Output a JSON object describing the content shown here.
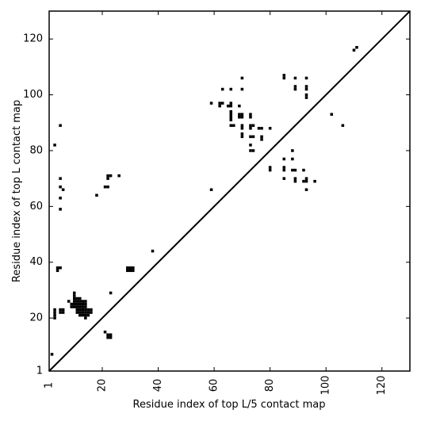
{
  "chart_data": {
    "type": "scatter",
    "title": "",
    "xlabel": "Residue index of top L/5 contact map",
    "ylabel": "Residue index of top L contact map",
    "xlim": [
      1,
      130
    ],
    "ylim": [
      1,
      130
    ],
    "xticks": [
      1,
      20,
      40,
      60,
      80,
      100,
      120
    ],
    "yticks": [
      1,
      20,
      40,
      60,
      80,
      100,
      120
    ],
    "xtick_labels": [
      "1",
      "20",
      "40",
      "60",
      "80",
      "100",
      "120"
    ],
    "ytick_labels": [
      "1",
      "20",
      "40",
      "60",
      "80",
      "100",
      "120"
    ],
    "diagonal_line": true,
    "grid": false,
    "legend": "none",
    "marker_color": "#000000",
    "series": [
      {
        "points_upper": [
          [
            3,
            82
          ],
          [
            5,
            89
          ],
          [
            5,
            70
          ],
          [
            5,
            67
          ],
          [
            6,
            66
          ],
          [
            5,
            63
          ],
          [
            5,
            59
          ],
          [
            18,
            64
          ],
          [
            21,
            67
          ],
          [
            22,
            67
          ],
          [
            22,
            70
          ],
          [
            22,
            71
          ],
          [
            23,
            71
          ],
          [
            26,
            71
          ],
          [
            59,
            66
          ],
          [
            59,
            97
          ],
          [
            62,
            96
          ],
          [
            62,
            97
          ],
          [
            63,
            97
          ],
          [
            63,
            102
          ],
          [
            65,
            96
          ],
          [
            66,
            96
          ],
          [
            66,
            97
          ],
          [
            66,
            102
          ],
          [
            66,
            94
          ],
          [
            66,
            93
          ],
          [
            66,
            92
          ],
          [
            66,
            91
          ],
          [
            66,
            89
          ],
          [
            67,
            89
          ],
          [
            69,
            96
          ],
          [
            69,
            93
          ],
          [
            69,
            92
          ],
          [
            70,
            92
          ],
          [
            70,
            93
          ],
          [
            70,
            89
          ],
          [
            70,
            88
          ],
          [
            70,
            86
          ],
          [
            70,
            85
          ],
          [
            70,
            102
          ],
          [
            70,
            106
          ],
          [
            73,
            93
          ],
          [
            73,
            92
          ],
          [
            73,
            89
          ],
          [
            73,
            88
          ],
          [
            74,
            89
          ],
          [
            73,
            85
          ],
          [
            74,
            85
          ],
          [
            73,
            82
          ],
          [
            73,
            80
          ],
          [
            74,
            80
          ],
          [
            76,
            88
          ],
          [
            77,
            88
          ],
          [
            77,
            85
          ],
          [
            77,
            84
          ],
          [
            80,
            88
          ],
          [
            80,
            74
          ],
          [
            80,
            73
          ],
          [
            85,
            107
          ],
          [
            85,
            106
          ],
          [
            85,
            77
          ],
          [
            85,
            74
          ],
          [
            85,
            73
          ],
          [
            85,
            70
          ],
          [
            88,
            80
          ],
          [
            88,
            77
          ],
          [
            88,
            73
          ],
          [
            89,
            73
          ],
          [
            89,
            106
          ],
          [
            89,
            103
          ],
          [
            89,
            102
          ],
          [
            89,
            70
          ],
          [
            89,
            69
          ],
          [
            92,
            73
          ],
          [
            92,
            69
          ],
          [
            93,
            106
          ],
          [
            93,
            103
          ],
          [
            93,
            102
          ],
          [
            93,
            100
          ],
          [
            93,
            99
          ],
          [
            93,
            70
          ],
          [
            93,
            69
          ],
          [
            93,
            66
          ],
          [
            96,
            69
          ],
          [
            102,
            93
          ],
          [
            106,
            89
          ],
          [
            110,
            116
          ],
          [
            111,
            117
          ]
        ],
        "points_lower": [
          [
            2,
            7
          ],
          [
            3,
            20
          ],
          [
            3,
            21
          ],
          [
            3,
            22
          ],
          [
            3,
            23
          ],
          [
            5,
            22
          ],
          [
            5,
            23
          ],
          [
            6,
            22
          ],
          [
            6,
            23
          ],
          [
            8,
            26
          ],
          [
            9,
            24
          ],
          [
            9,
            25
          ],
          [
            10,
            24
          ],
          [
            10,
            25
          ],
          [
            10,
            26
          ],
          [
            10,
            27
          ],
          [
            10,
            28
          ],
          [
            10,
            29
          ],
          [
            11,
            22
          ],
          [
            11,
            23
          ],
          [
            11,
            24
          ],
          [
            11,
            25
          ],
          [
            11,
            26
          ],
          [
            11,
            27
          ],
          [
            12,
            21
          ],
          [
            12,
            22
          ],
          [
            12,
            23
          ],
          [
            12,
            24
          ],
          [
            12,
            25
          ],
          [
            12,
            26
          ],
          [
            12,
            27
          ],
          [
            13,
            21
          ],
          [
            13,
            22
          ],
          [
            13,
            23
          ],
          [
            13,
            24
          ],
          [
            13,
            25
          ],
          [
            13,
            26
          ],
          [
            14,
            20
          ],
          [
            14,
            21
          ],
          [
            14,
            22
          ],
          [
            14,
            23
          ],
          [
            14,
            24
          ],
          [
            14,
            25
          ],
          [
            14,
            26
          ],
          [
            15,
            21
          ],
          [
            15,
            22
          ],
          [
            15,
            23
          ],
          [
            16,
            22
          ],
          [
            16,
            23
          ],
          [
            4,
            37
          ],
          [
            4,
            38
          ],
          [
            5,
            38
          ],
          [
            21,
            15
          ],
          [
            22,
            13
          ],
          [
            22,
            14
          ],
          [
            23,
            13
          ],
          [
            23,
            14
          ],
          [
            23,
            29
          ],
          [
            29,
            37
          ],
          [
            29,
            38
          ],
          [
            30,
            37
          ],
          [
            30,
            38
          ],
          [
            31,
            37
          ],
          [
            31,
            38
          ],
          [
            38,
            44
          ]
        ]
      }
    ]
  }
}
